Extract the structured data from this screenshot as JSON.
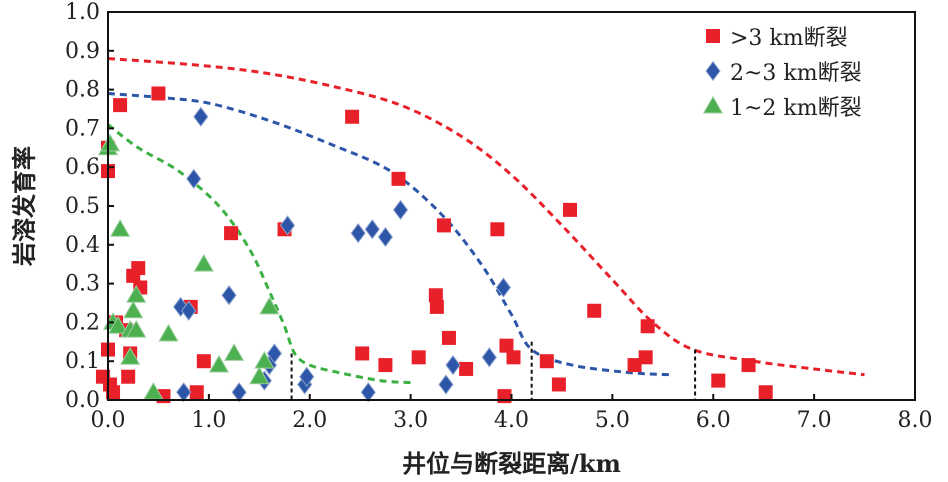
{
  "chart_data": {
    "type": "scatter",
    "xlabel": "井位与断裂距离/km",
    "ylabel": "岩溶发育率",
    "xlim": [
      0,
      8
    ],
    "ylim": [
      0,
      1.0
    ],
    "x_ticks": [
      "0.0",
      "1.0",
      "2.0",
      "3.0",
      "4.0",
      "5.0",
      "6.0",
      "7.0",
      "8.0"
    ],
    "y_ticks": [
      "0.0",
      "0.1",
      "0.2",
      "0.3",
      "0.4",
      "0.5",
      "0.6",
      "0.7",
      "0.8",
      "0.9",
      "1.0"
    ],
    "grid": false,
    "legend_position": "top-right",
    "series": [
      {
        "name": ">3 km断裂",
        "marker": "square",
        "color": "#e8202a",
        "points": [
          [
            -0.05,
            0.06
          ],
          [
            0.0,
            0.13
          ],
          [
            0.0,
            0.59
          ],
          [
            0.0,
            0.65
          ],
          [
            0.02,
            0.04
          ],
          [
            0.05,
            0.02
          ],
          [
            0.08,
            0.2
          ],
          [
            0.12,
            0.76
          ],
          [
            0.18,
            0.18
          ],
          [
            0.2,
            0.06
          ],
          [
            0.22,
            0.12
          ],
          [
            0.25,
            0.32
          ],
          [
            0.3,
            0.34
          ],
          [
            0.32,
            0.29
          ],
          [
            0.5,
            0.79
          ],
          [
            0.55,
            0.01
          ],
          [
            0.82,
            0.24
          ],
          [
            0.88,
            0.02
          ],
          [
            0.95,
            0.1
          ],
          [
            1.22,
            0.43
          ],
          [
            1.75,
            0.44
          ],
          [
            2.42,
            0.73
          ],
          [
            2.52,
            0.12
          ],
          [
            2.75,
            0.09
          ],
          [
            2.88,
            0.57
          ],
          [
            3.08,
            0.11
          ],
          [
            3.25,
            0.27
          ],
          [
            3.26,
            0.24
          ],
          [
            3.33,
            0.45
          ],
          [
            3.38,
            0.16
          ],
          [
            3.55,
            0.08
          ],
          [
            3.86,
            0.44
          ],
          [
            3.93,
            0.01
          ],
          [
            3.95,
            0.14
          ],
          [
            4.02,
            0.11
          ],
          [
            4.35,
            0.1
          ],
          [
            4.47,
            0.04
          ],
          [
            4.58,
            0.49
          ],
          [
            4.82,
            0.23
          ],
          [
            5.22,
            0.09
          ],
          [
            5.33,
            0.11
          ],
          [
            5.35,
            0.19
          ],
          [
            6.05,
            0.05
          ],
          [
            6.35,
            0.09
          ],
          [
            6.52,
            0.02
          ]
        ]
      },
      {
        "name": "2~3 km断裂",
        "marker": "diamond",
        "color": "#2d56a9",
        "points": [
          [
            0.72,
            0.24
          ],
          [
            0.75,
            0.02
          ],
          [
            0.8,
            0.23
          ],
          [
            0.85,
            0.57
          ],
          [
            0.92,
            0.73
          ],
          [
            1.2,
            0.27
          ],
          [
            1.3,
            0.02
          ],
          [
            1.55,
            0.05
          ],
          [
            1.6,
            0.09
          ],
          [
            1.65,
            0.12
          ],
          [
            1.78,
            0.45
          ],
          [
            1.95,
            0.04
          ],
          [
            1.97,
            0.06
          ],
          [
            2.48,
            0.43
          ],
          [
            2.58,
            0.02
          ],
          [
            2.62,
            0.44
          ],
          [
            2.75,
            0.42
          ],
          [
            2.9,
            0.49
          ],
          [
            3.35,
            0.04
          ],
          [
            3.42,
            0.09
          ],
          [
            3.78,
            0.11
          ],
          [
            3.92,
            0.29
          ]
        ]
      },
      {
        "name": "1~2 km断裂",
        "marker": "triangle",
        "color": "#4caf50",
        "points": [
          [
            0.0,
            0.65
          ],
          [
            0.02,
            0.66
          ],
          [
            0.05,
            0.2
          ],
          [
            0.1,
            0.19
          ],
          [
            0.12,
            0.44
          ],
          [
            0.22,
            0.11
          ],
          [
            0.22,
            0.18
          ],
          [
            0.25,
            0.23
          ],
          [
            0.28,
            0.18
          ],
          [
            0.28,
            0.27
          ],
          [
            0.45,
            0.02
          ],
          [
            0.6,
            0.17
          ],
          [
            0.95,
            0.35
          ],
          [
            1.1,
            0.09
          ],
          [
            1.25,
            0.12
          ],
          [
            1.5,
            0.06
          ],
          [
            1.55,
            0.1
          ],
          [
            1.6,
            0.24
          ]
        ]
      }
    ],
    "envelopes": [
      {
        "series": ">3 km断裂",
        "color": "#e8202a",
        "points": [
          [
            0,
            0.88
          ],
          [
            0.8,
            0.865
          ],
          [
            1.5,
            0.845
          ],
          [
            2.2,
            0.81
          ],
          [
            2.9,
            0.76
          ],
          [
            3.5,
            0.68
          ],
          [
            4.0,
            0.58
          ],
          [
            4.5,
            0.45
          ],
          [
            5.0,
            0.31
          ],
          [
            5.4,
            0.2
          ],
          [
            5.8,
            0.13
          ],
          [
            6.4,
            0.1
          ],
          [
            7.0,
            0.08
          ],
          [
            7.5,
            0.065
          ]
        ]
      },
      {
        "series": "2~3 km断裂",
        "color": "#2d56a9",
        "points": [
          [
            0,
            0.79
          ],
          [
            0.5,
            0.78
          ],
          [
            1.0,
            0.765
          ],
          [
            1.6,
            0.72
          ],
          [
            2.2,
            0.66
          ],
          [
            2.8,
            0.59
          ],
          [
            3.3,
            0.48
          ],
          [
            3.7,
            0.35
          ],
          [
            4.0,
            0.22
          ],
          [
            4.2,
            0.13
          ],
          [
            4.6,
            0.09
          ],
          [
            5.2,
            0.07
          ],
          [
            5.6,
            0.065
          ]
        ]
      },
      {
        "series": "1~2 km断裂",
        "color": "#3cb043",
        "points": [
          [
            0,
            0.71
          ],
          [
            0.3,
            0.65
          ],
          [
            0.7,
            0.59
          ],
          [
            1.1,
            0.5
          ],
          [
            1.4,
            0.39
          ],
          [
            1.6,
            0.28
          ],
          [
            1.75,
            0.19
          ],
          [
            1.85,
            0.12
          ],
          [
            2.0,
            0.09
          ],
          [
            2.3,
            0.07
          ],
          [
            2.7,
            0.05
          ],
          [
            3.0,
            0.045
          ]
        ]
      }
    ],
    "cutoff_lines_x": [
      1.82,
      4.2,
      5.82
    ],
    "cutoff_lines_y_top": [
      0.12,
      0.15,
      0.13
    ]
  }
}
